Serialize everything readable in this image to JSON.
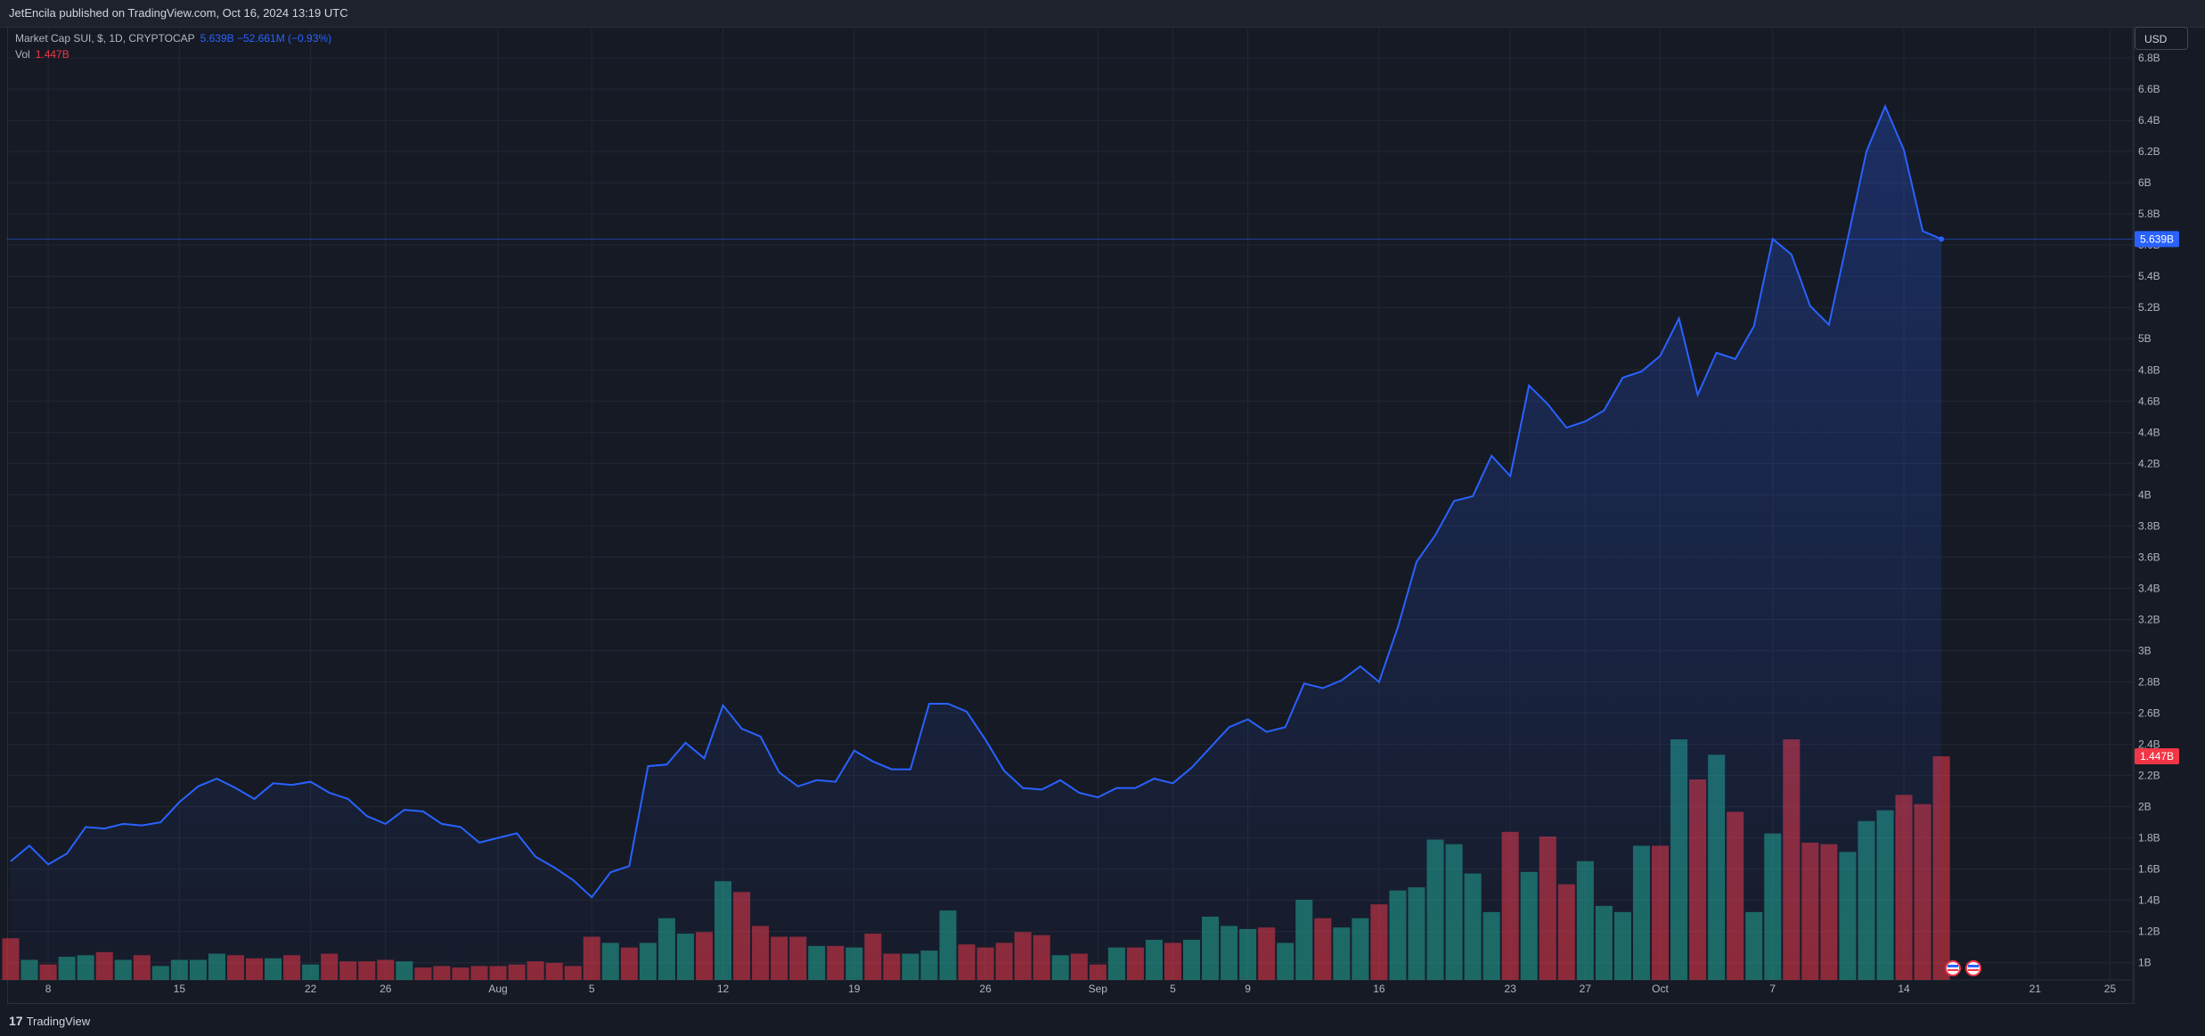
{
  "header": {
    "publisher_text": "JetEncila published on TradingView.com, Oct 16, 2024 13:19 UTC"
  },
  "legend": {
    "symbol_text": "Market Cap SUI, $, 1D, CRYPTOCAP",
    "value_text": "5.639B  −52.661M (−0.93%)",
    "volume_label": "Vol",
    "volume_value": "1.447B"
  },
  "currency": "USD",
  "footer": {
    "logo_text": "TradingView",
    "logo_mark": "17"
  },
  "colors": {
    "line": "#2962ff",
    "volume_up": "#22ab94",
    "volume_down": "#f23645",
    "grid": "#242733",
    "axis_text": "#b2b5be"
  },
  "chart_data": {
    "type": "area",
    "title": "",
    "ylim": [
      0.89,
      7.0
    ],
    "y_unit": "B",
    "y_ticks": [
      "1B",
      "1.2B",
      "1.4B",
      "1.6B",
      "1.8B",
      "2B",
      "2.2B",
      "2.4B",
      "2.6B",
      "2.8B",
      "3B",
      "3.2B",
      "3.4B",
      "3.6B",
      "3.8B",
      "4B",
      "4.2B",
      "4.4B",
      "4.6B",
      "4.8B",
      "5B",
      "5.2B",
      "5.4B",
      "5.6B",
      "5.8B",
      "6B",
      "6.2B",
      "6.4B",
      "6.6B",
      "6.8B"
    ],
    "x_ticks": [
      {
        "label": "8",
        "index": 2
      },
      {
        "label": "15",
        "index": 9
      },
      {
        "label": "22",
        "index": 16
      },
      {
        "label": "26",
        "index": 20
      },
      {
        "label": "Aug",
        "index": 26
      },
      {
        "label": "5",
        "index": 31
      },
      {
        "label": "12",
        "index": 38
      },
      {
        "label": "19",
        "index": 45
      },
      {
        "label": "26",
        "index": 52
      },
      {
        "label": "Sep",
        "index": 58
      },
      {
        "label": "5",
        "index": 62
      },
      {
        "label": "9",
        "index": 66
      },
      {
        "label": "16",
        "index": 73
      },
      {
        "label": "23",
        "index": 80
      },
      {
        "label": "27",
        "index": 84
      },
      {
        "label": "Oct",
        "index": 88
      },
      {
        "label": "7",
        "index": 94
      },
      {
        "label": "14",
        "index": 101
      },
      {
        "label": "21",
        "index": 108
      },
      {
        "label": "25",
        "index": 112
      }
    ],
    "market_cap": [
      1.65,
      1.75,
      1.63,
      1.7,
      1.87,
      1.86,
      1.89,
      1.88,
      1.9,
      2.03,
      2.13,
      2.18,
      2.12,
      2.05,
      2.15,
      2.14,
      2.16,
      2.09,
      2.05,
      1.94,
      1.89,
      1.98,
      1.97,
      1.89,
      1.87,
      1.77,
      1.8,
      1.83,
      1.68,
      1.61,
      1.53,
      1.42,
      1.58,
      1.62,
      2.26,
      2.27,
      2.41,
      2.31,
      2.65,
      2.5,
      2.45,
      2.22,
      2.13,
      2.17,
      2.16,
      2.36,
      2.29,
      2.24,
      2.24,
      2.66,
      2.66,
      2.61,
      2.43,
      2.23,
      2.12,
      2.11,
      2.17,
      2.09,
      2.06,
      2.12,
      2.12,
      2.18,
      2.15,
      2.25,
      2.38,
      2.51,
      2.56,
      2.48,
      2.51,
      2.79,
      2.76,
      2.81,
      2.9,
      2.8,
      3.15,
      3.57,
      3.74,
      3.96,
      3.99,
      4.25,
      4.12,
      4.7,
      4.58,
      4.43,
      4.47,
      4.54,
      4.75,
      4.79,
      4.89,
      5.13,
      4.64,
      4.91,
      4.87,
      5.08,
      5.64,
      5.54,
      5.21,
      5.09,
      5.64,
      6.2,
      6.49,
      6.21,
      5.69,
      5.639
    ],
    "volume": [
      {
        "v": 1.16,
        "up": false
      },
      {
        "v": 1.02,
        "up": true
      },
      {
        "v": 0.99,
        "up": false
      },
      {
        "v": 1.04,
        "up": true
      },
      {
        "v": 1.05,
        "up": true
      },
      {
        "v": 1.07,
        "up": false
      },
      {
        "v": 1.02,
        "up": true
      },
      {
        "v": 1.05,
        "up": false
      },
      {
        "v": 0.98,
        "up": true
      },
      {
        "v": 1.02,
        "up": true
      },
      {
        "v": 1.02,
        "up": true
      },
      {
        "v": 1.06,
        "up": true
      },
      {
        "v": 1.05,
        "up": false
      },
      {
        "v": 1.03,
        "up": false
      },
      {
        "v": 1.03,
        "up": true
      },
      {
        "v": 1.05,
        "up": false
      },
      {
        "v": 0.99,
        "up": true
      },
      {
        "v": 1.06,
        "up": false
      },
      {
        "v": 1.01,
        "up": false
      },
      {
        "v": 1.01,
        "up": false
      },
      {
        "v": 1.02,
        "up": false
      },
      {
        "v": 1.01,
        "up": true
      },
      {
        "v": 0.97,
        "up": false
      },
      {
        "v": 0.98,
        "up": false
      },
      {
        "v": 0.97,
        "up": false
      },
      {
        "v": 0.98,
        "up": false
      },
      {
        "v": 0.98,
        "up": false
      },
      {
        "v": 0.99,
        "up": false
      },
      {
        "v": 1.01,
        "up": false
      },
      {
        "v": 1.0,
        "up": false
      },
      {
        "v": 0.98,
        "up": false
      },
      {
        "v": 1.17,
        "up": false
      },
      {
        "v": 1.13,
        "up": true
      },
      {
        "v": 1.1,
        "up": false
      },
      {
        "v": 1.13,
        "up": true
      },
      {
        "v": 1.29,
        "up": true
      },
      {
        "v": 1.19,
        "up": true
      },
      {
        "v": 1.2,
        "up": false
      },
      {
        "v": 1.53,
        "up": true
      },
      {
        "v": 1.46,
        "up": false
      },
      {
        "v": 1.24,
        "up": false
      },
      {
        "v": 1.17,
        "up": false
      },
      {
        "v": 1.17,
        "up": false
      },
      {
        "v": 1.11,
        "up": true
      },
      {
        "v": 1.11,
        "up": false
      },
      {
        "v": 1.1,
        "up": true
      },
      {
        "v": 1.19,
        "up": false
      },
      {
        "v": 1.06,
        "up": false
      },
      {
        "v": 1.06,
        "up": true
      },
      {
        "v": 1.08,
        "up": true
      },
      {
        "v": 1.34,
        "up": true
      },
      {
        "v": 1.12,
        "up": false
      },
      {
        "v": 1.1,
        "up": false
      },
      {
        "v": 1.13,
        "up": false
      },
      {
        "v": 1.2,
        "up": false
      },
      {
        "v": 1.18,
        "up": false
      },
      {
        "v": 1.05,
        "up": true
      },
      {
        "v": 1.06,
        "up": false
      },
      {
        "v": 0.99,
        "up": false
      },
      {
        "v": 1.1,
        "up": true
      },
      {
        "v": 1.1,
        "up": false
      },
      {
        "v": 1.15,
        "up": true
      },
      {
        "v": 1.13,
        "up": false
      },
      {
        "v": 1.15,
        "up": true
      },
      {
        "v": 1.3,
        "up": true
      },
      {
        "v": 1.24,
        "up": true
      },
      {
        "v": 1.22,
        "up": true
      },
      {
        "v": 1.23,
        "up": false
      },
      {
        "v": 1.13,
        "up": true
      },
      {
        "v": 1.41,
        "up": true
      },
      {
        "v": 1.29,
        "up": false
      },
      {
        "v": 1.23,
        "up": true
      },
      {
        "v": 1.29,
        "up": true
      },
      {
        "v": 1.38,
        "up": false
      },
      {
        "v": 1.47,
        "up": true
      },
      {
        "v": 1.49,
        "up": true
      },
      {
        "v": 1.8,
        "up": true
      },
      {
        "v": 1.77,
        "up": true
      },
      {
        "v": 1.58,
        "up": true
      },
      {
        "v": 1.33,
        "up": true
      },
      {
        "v": 1.85,
        "up": false
      },
      {
        "v": 1.59,
        "up": true
      },
      {
        "v": 1.82,
        "up": false
      },
      {
        "v": 1.51,
        "up": false
      },
      {
        "v": 1.66,
        "up": true
      },
      {
        "v": 1.37,
        "up": true
      },
      {
        "v": 1.33,
        "up": true
      },
      {
        "v": 1.76,
        "up": true
      },
      {
        "v": 1.76,
        "up": false
      },
      {
        "v": 2.45,
        "up": true
      },
      {
        "v": 2.19,
        "up": false
      },
      {
        "v": 2.35,
        "up": true
      },
      {
        "v": 1.98,
        "up": false
      },
      {
        "v": 1.33,
        "up": true
      },
      {
        "v": 1.84,
        "up": true
      },
      {
        "v": 2.45,
        "up": false
      },
      {
        "v": 1.78,
        "up": false
      },
      {
        "v": 1.77,
        "up": false
      },
      {
        "v": 1.72,
        "up": true
      },
      {
        "v": 1.92,
        "up": true
      },
      {
        "v": 1.99,
        "up": true
      },
      {
        "v": 2.09,
        "up": false
      },
      {
        "v": 2.03,
        "up": false
      },
      {
        "v": 2.34,
        "up": false
      }
    ],
    "last_value_label": "5.639B",
    "last_volume_label": "1.447B"
  }
}
